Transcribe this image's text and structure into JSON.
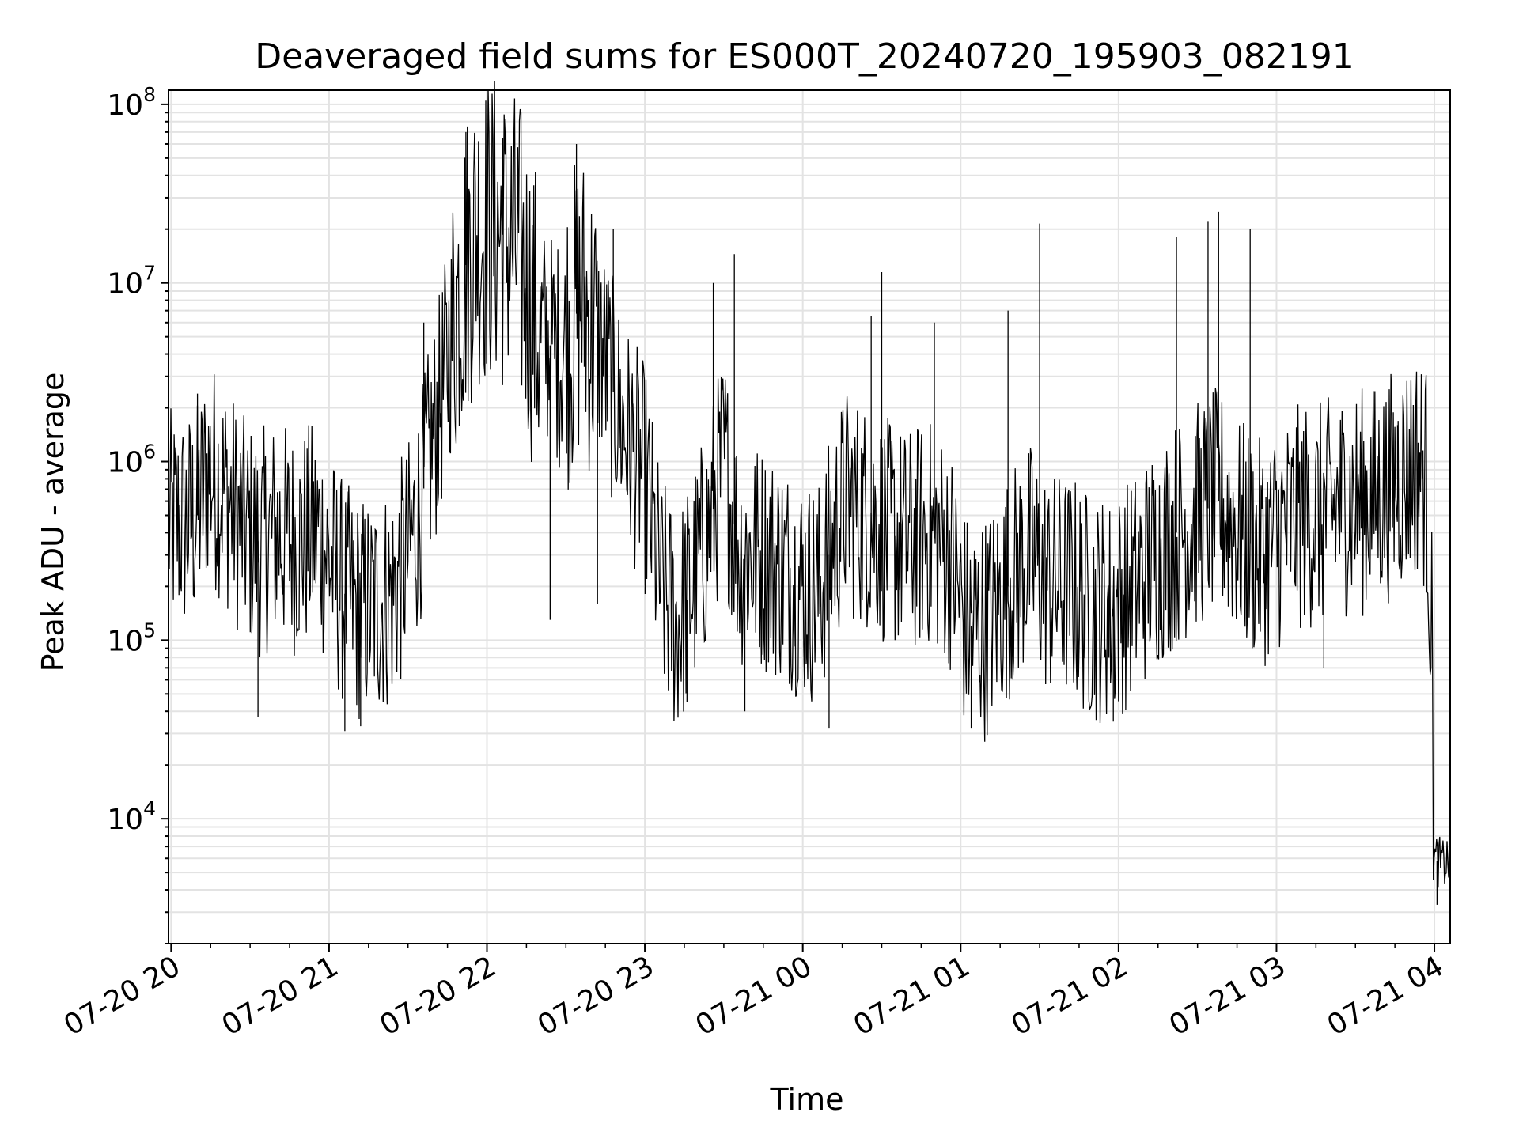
{
  "chart_data": {
    "type": "line",
    "title": "Deaveraged field sums for ES000T_20240720_195903_082191",
    "xlabel": "Time",
    "ylabel": "Peak ADU - average",
    "yscale": "log",
    "ylim": [
      2000,
      120000000
    ],
    "xlim": [
      "2024-07-20 19:59",
      "2024-07-21 04:06"
    ],
    "grid": true,
    "line_color": "#000000",
    "x_ticks": [
      "07-20 20",
      "07-20 21",
      "07-20 22",
      "07-20 23",
      "07-21 00",
      "07-21 01",
      "07-21 02",
      "07-21 03",
      "07-21 04"
    ],
    "y_ticks": [
      {
        "base": "10",
        "exp": "4"
      },
      {
        "base": "10",
        "exp": "5"
      },
      {
        "base": "10",
        "exp": "6"
      },
      {
        "base": "10",
        "exp": "7"
      },
      {
        "base": "10",
        "exp": "8"
      }
    ],
    "series": [
      {
        "x": [
          "2024-07-20 19:59",
          "2024-07-20 20:06",
          "2024-07-20 20:10",
          "2024-07-20 20:14",
          "2024-07-20 20:20",
          "2024-07-20 20:28",
          "2024-07-20 20:34",
          "2024-07-20 20:40",
          "2024-07-20 20:48",
          "2024-07-20 20:56",
          "2024-07-20 21:04",
          "2024-07-20 21:10",
          "2024-07-20 21:16",
          "2024-07-20 21:24",
          "2024-07-20 21:30",
          "2024-07-20 21:34",
          "2024-07-20 21:38",
          "2024-07-20 21:42",
          "2024-07-20 21:50",
          "2024-07-20 21:56",
          "2024-07-20 22:04",
          "2024-07-20 22:12",
          "2024-07-20 22:20",
          "2024-07-20 22:28",
          "2024-07-20 22:36",
          "2024-07-20 22:44",
          "2024-07-20 22:52",
          "2024-07-20 23:00",
          "2024-07-20 23:06",
          "2024-07-20 23:12",
          "2024-07-20 23:18",
          "2024-07-20 23:24",
          "2024-07-20 23:30",
          "2024-07-20 23:36",
          "2024-07-20 23:44",
          "2024-07-20 23:52",
          "2024-07-21 00:00",
          "2024-07-21 00:06",
          "2024-07-21 00:10",
          "2024-07-21 00:16",
          "2024-07-21 00:24",
          "2024-07-21 00:32",
          "2024-07-21 00:40",
          "2024-07-21 00:48",
          "2024-07-21 00:56",
          "2024-07-21 01:02",
          "2024-07-21 01:10",
          "2024-07-21 01:18",
          "2024-07-21 01:26",
          "2024-07-21 01:34",
          "2024-07-21 01:42",
          "2024-07-21 01:50",
          "2024-07-21 01:58",
          "2024-07-21 02:06",
          "2024-07-21 02:14",
          "2024-07-21 02:22",
          "2024-07-21 02:30",
          "2024-07-21 02:38",
          "2024-07-21 02:46",
          "2024-07-21 02:54",
          "2024-07-21 03:02",
          "2024-07-21 03:10",
          "2024-07-21 03:18",
          "2024-07-21 03:26",
          "2024-07-21 03:34",
          "2024-07-21 03:42",
          "2024-07-21 03:50",
          "2024-07-21 03:54",
          "2024-07-21 03:57",
          "2024-07-21 03:59",
          "2024-07-21 04:00",
          "2024-07-21 04:03",
          "2024-07-21 04:06"
        ],
        "y": [
          450000,
          450000,
          500000,
          900000,
          700000,
          400000,
          350000,
          400000,
          350000,
          400000,
          200000,
          150000,
          150000,
          180000,
          300000,
          500000,
          1000000,
          2000000,
          10000000,
          20000000,
          20000000,
          15000000,
          5000000,
          4000000,
          8000000,
          4000000,
          1500000,
          800000,
          200000,
          120000,
          200000,
          400000,
          1000000,
          300000,
          300000,
          250000,
          200000,
          180000,
          300000,
          600000,
          500000,
          400000,
          350000,
          400000,
          300000,
          120000,
          120000,
          200000,
          300000,
          200000,
          200000,
          150000,
          150000,
          200000,
          300000,
          400000,
          500000,
          600000,
          400000,
          300000,
          400000,
          500000,
          500000,
          600000,
          600000,
          700000,
          900000,
          1000000,
          800000,
          100000,
          6000,
          5500,
          6000
        ],
        "spikes": [
          {
            "x": "2024-07-20 20:10",
            "y": 2400000
          },
          {
            "x": "2024-07-20 20:33",
            "y": 37000
          },
          {
            "x": "2024-07-20 21:06",
            "y": 31000
          },
          {
            "x": "2024-07-20 21:12",
            "y": 33000
          },
          {
            "x": "2024-07-20 21:36",
            "y": 6000000
          },
          {
            "x": "2024-07-20 21:52",
            "y": 70000000
          },
          {
            "x": "2024-07-20 22:06",
            "y": 65000000
          },
          {
            "x": "2024-07-20 22:24",
            "y": 130000
          },
          {
            "x": "2024-07-20 22:34",
            "y": 60000000
          },
          {
            "x": "2024-07-20 22:42",
            "y": 160000
          },
          {
            "x": "2024-07-20 22:48",
            "y": 20000000
          },
          {
            "x": "2024-07-20 23:16",
            "y": 45000
          },
          {
            "x": "2024-07-20 23:26",
            "y": 10000000
          },
          {
            "x": "2024-07-20 23:34",
            "y": 14500000
          },
          {
            "x": "2024-07-20 23:38",
            "y": 40000
          },
          {
            "x": "2024-07-21 00:10",
            "y": 32000
          },
          {
            "x": "2024-07-21 00:26",
            "y": 6500000
          },
          {
            "x": "2024-07-21 00:30",
            "y": 11500000
          },
          {
            "x": "2024-07-21 00:50",
            "y": 6000000
          },
          {
            "x": "2024-07-21 01:04",
            "y": 32000
          },
          {
            "x": "2024-07-21 01:18",
            "y": 7000000
          },
          {
            "x": "2024-07-21 01:30",
            "y": 21500000
          },
          {
            "x": "2024-07-21 01:58",
            "y": 35000
          },
          {
            "x": "2024-07-21 02:22",
            "y": 18000000
          },
          {
            "x": "2024-07-21 02:34",
            "y": 22000000
          },
          {
            "x": "2024-07-21 02:38",
            "y": 25000000
          },
          {
            "x": "2024-07-21 02:50",
            "y": 20000000
          },
          {
            "x": "2024-07-21 03:18",
            "y": 70000
          },
          {
            "x": "2024-07-21 03:46",
            "y": 1600000
          },
          {
            "x": "2024-07-21 04:01",
            "y": 3300
          }
        ]
      }
    ]
  }
}
